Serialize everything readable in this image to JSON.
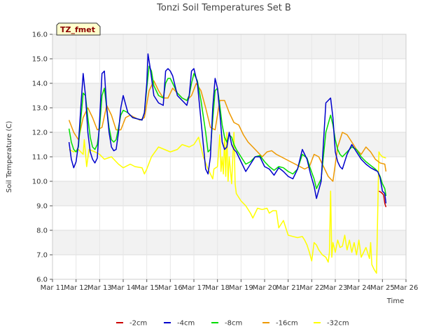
{
  "chart_data": {
    "type": "line",
    "title": "Tonzi Soil Temperatures Set B",
    "xlabel": "Time",
    "ylabel": "Soil Temperature (C)",
    "badge": "TZ_fmet",
    "xlim": [
      11,
      26
    ],
    "ylim": [
      6.0,
      16.0
    ],
    "x_ticks": [
      11,
      12,
      13,
      14,
      15,
      16,
      17,
      18,
      19,
      20,
      21,
      22,
      23,
      24,
      25,
      26
    ],
    "x_tick_labels": [
      "Mar 11",
      "Mar 12",
      "Mar 13",
      "Mar 14",
      "Mar 15",
      "Mar 16",
      "Mar 17",
      "Mar 18",
      "Mar 19",
      "Mar 20",
      "Mar 21",
      "Mar 22",
      "Mar 23",
      "Mar 24",
      "Mar 25",
      "Mar 26"
    ],
    "y_ticks": [
      6.0,
      7.0,
      8.0,
      9.0,
      10.0,
      11.0,
      12.0,
      13.0,
      14.0,
      15.0,
      16.0
    ],
    "y_tick_labels": [
      "6.0",
      "7.0",
      "8.0",
      "9.0",
      "10.0",
      "11.0",
      "12.0",
      "13.0",
      "14.0",
      "15.0",
      "16.0"
    ],
    "grid": true,
    "legend_position": "bottom-center",
    "series": [
      {
        "name": "-2cm",
        "color": "#cc0000",
        "x": [
          24.85,
          24.95,
          25.05,
          25.1,
          25.15
        ],
        "y": [
          9.6,
          9.55,
          9.45,
          9.1,
          8.95
        ]
      },
      {
        "name": "-4cm",
        "color": "#0000cc",
        "x": [
          11.7,
          11.8,
          11.9,
          12.0,
          12.1,
          12.2,
          12.3,
          12.4,
          12.5,
          12.6,
          12.7,
          12.8,
          12.9,
          13.0,
          13.1,
          13.2,
          13.3,
          13.4,
          13.5,
          13.6,
          13.7,
          13.8,
          13.9,
          14.0,
          14.2,
          14.4,
          14.6,
          14.8,
          14.9,
          15.0,
          15.05,
          15.15,
          15.3,
          15.5,
          15.7,
          15.8,
          15.9,
          16.0,
          16.1,
          16.3,
          16.5,
          16.7,
          16.8,
          16.9,
          17.0,
          17.15,
          17.3,
          17.5,
          17.6,
          17.7,
          17.8,
          17.9,
          18.0,
          18.1,
          18.2,
          18.3,
          18.4,
          18.5,
          18.6,
          18.7,
          18.8,
          19.0,
          19.2,
          19.4,
          19.6,
          19.8,
          20.0,
          20.2,
          20.4,
          20.6,
          20.8,
          21.0,
          21.2,
          21.4,
          21.6,
          21.8,
          21.95,
          22.1,
          22.2,
          22.4,
          22.6,
          22.8,
          22.9,
          23.0,
          23.1,
          23.2,
          23.3,
          23.5,
          23.7,
          23.9,
          24.1,
          24.3,
          24.5,
          24.7,
          24.8,
          24.9,
          25.0,
          25.1,
          25.15
        ],
        "y": [
          11.6,
          10.9,
          10.55,
          10.8,
          11.5,
          13.0,
          14.4,
          13.5,
          12.0,
          11.2,
          10.9,
          10.75,
          10.95,
          12.5,
          14.4,
          14.5,
          13.0,
          12.0,
          11.4,
          11.25,
          11.3,
          12.0,
          13.0,
          13.5,
          12.8,
          12.6,
          12.55,
          12.5,
          12.8,
          14.0,
          15.2,
          14.6,
          13.5,
          13.2,
          13.1,
          14.5,
          14.6,
          14.5,
          14.3,
          13.5,
          13.3,
          13.1,
          13.5,
          14.5,
          14.6,
          14.0,
          12.5,
          10.5,
          10.3,
          11.0,
          13.0,
          14.2,
          13.8,
          12.8,
          11.6,
          11.3,
          11.4,
          12.0,
          11.5,
          11.3,
          11.2,
          10.8,
          10.4,
          10.7,
          11.0,
          11.0,
          10.6,
          10.5,
          10.25,
          10.55,
          10.4,
          10.2,
          10.1,
          10.5,
          11.3,
          10.9,
          10.3,
          9.8,
          9.3,
          10.0,
          13.2,
          13.4,
          12.6,
          11.2,
          10.8,
          10.6,
          10.5,
          11.1,
          11.5,
          11.2,
          10.9,
          10.7,
          10.55,
          10.45,
          10.4,
          10.15,
          9.6,
          9.5,
          9.1
        ]
      },
      {
        "name": "-8cm",
        "color": "#00dd00",
        "x": [
          11.7,
          11.8,
          11.9,
          12.0,
          12.1,
          12.2,
          12.3,
          12.4,
          12.5,
          12.6,
          12.7,
          12.8,
          12.9,
          13.0,
          13.1,
          13.2,
          13.3,
          13.4,
          13.5,
          13.6,
          13.7,
          13.8,
          13.9,
          14.0,
          14.2,
          14.4,
          14.6,
          14.8,
          14.9,
          15.0,
          15.1,
          15.2,
          15.3,
          15.5,
          15.7,
          15.8,
          15.9,
          16.0,
          16.1,
          16.3,
          16.5,
          16.7,
          16.8,
          16.9,
          17.0,
          17.15,
          17.3,
          17.5,
          17.6,
          17.7,
          17.8,
          17.9,
          18.0,
          18.1,
          18.2,
          18.3,
          18.4,
          18.5,
          18.6,
          18.7,
          18.8,
          19.0,
          19.2,
          19.4,
          19.6,
          19.8,
          20.0,
          20.2,
          20.4,
          20.6,
          20.8,
          21.0,
          21.2,
          21.4,
          21.6,
          21.8,
          21.95,
          22.1,
          22.2,
          22.4,
          22.6,
          22.8,
          22.9,
          23.0,
          23.1,
          23.2,
          23.3,
          23.5,
          23.7,
          23.9,
          24.1,
          24.3,
          24.5,
          24.7,
          24.8,
          24.9,
          25.0,
          25.1,
          25.15
        ],
        "y": [
          12.15,
          11.6,
          11.3,
          11.2,
          11.4,
          12.5,
          13.6,
          13.5,
          12.6,
          11.8,
          11.4,
          11.3,
          11.5,
          12.2,
          13.5,
          13.8,
          13.0,
          12.2,
          11.7,
          11.6,
          11.7,
          12.2,
          12.7,
          12.9,
          12.8,
          12.6,
          12.55,
          12.5,
          12.8,
          13.8,
          14.7,
          14.5,
          13.9,
          13.5,
          13.4,
          14.0,
          14.2,
          14.2,
          14.0,
          13.6,
          13.4,
          13.3,
          13.5,
          14.0,
          14.4,
          14.1,
          13.3,
          12.0,
          11.2,
          11.3,
          12.5,
          13.7,
          13.8,
          13.1,
          12.3,
          11.8,
          11.6,
          11.9,
          11.8,
          11.5,
          11.3,
          11.0,
          10.7,
          10.8,
          11.0,
          11.05,
          10.8,
          10.6,
          10.45,
          10.6,
          10.55,
          10.4,
          10.3,
          10.5,
          11.1,
          10.95,
          10.5,
          10.1,
          9.7,
          10.1,
          12.0,
          12.7,
          12.3,
          11.7,
          11.3,
          11.1,
          11.0,
          11.2,
          11.4,
          11.3,
          11.0,
          10.8,
          10.65,
          10.5,
          10.4,
          10.2,
          9.9,
          9.7,
          9.4
        ]
      },
      {
        "name": "-16cm",
        "color": "#ee9900",
        "x": [
          11.7,
          11.9,
          12.1,
          12.3,
          12.5,
          12.7,
          12.9,
          13.1,
          13.3,
          13.5,
          13.7,
          13.9,
          14.1,
          14.3,
          14.5,
          14.7,
          14.9,
          15.1,
          15.3,
          15.5,
          15.7,
          15.9,
          16.1,
          16.3,
          16.5,
          16.7,
          16.9,
          17.1,
          17.3,
          17.5,
          17.7,
          17.9,
          18.1,
          18.3,
          18.5,
          18.7,
          18.9,
          19.1,
          19.3,
          19.5,
          19.7,
          19.9,
          20.1,
          20.3,
          20.5,
          20.7,
          20.9,
          21.1,
          21.3,
          21.5,
          21.7,
          21.9,
          22.1,
          22.3,
          22.5,
          22.7,
          22.9,
          23.1,
          23.3,
          23.5,
          23.7,
          23.9,
          24.1,
          24.3,
          24.5,
          24.7,
          24.9,
          25.1,
          25.15
        ],
        "y": [
          12.5,
          12.0,
          11.7,
          12.6,
          13.0,
          12.6,
          12.1,
          12.2,
          13.1,
          12.7,
          12.1,
          12.1,
          12.6,
          12.7,
          12.6,
          12.5,
          12.6,
          13.7,
          14.1,
          13.7,
          13.4,
          13.4,
          13.8,
          13.6,
          13.4,
          13.3,
          13.5,
          14.0,
          13.7,
          13.0,
          12.2,
          12.1,
          13.3,
          13.3,
          12.8,
          12.4,
          12.3,
          11.9,
          11.6,
          11.4,
          11.2,
          11.0,
          11.2,
          11.25,
          11.1,
          11.0,
          10.9,
          10.8,
          10.7,
          10.6,
          10.5,
          10.6,
          11.1,
          11.0,
          10.6,
          10.2,
          10.0,
          11.4,
          12.0,
          11.9,
          11.6,
          11.3,
          11.1,
          11.4,
          11.2,
          10.9,
          10.75,
          10.7,
          10.4
        ]
      },
      {
        "name": "-32cm",
        "color": "#ffff00",
        "x": [
          11.7,
          11.9,
          12.1,
          12.3,
          12.35,
          12.45,
          12.55,
          12.8,
          13.0,
          13.2,
          13.5,
          13.8,
          14.0,
          14.3,
          14.5,
          14.8,
          14.9,
          15.0,
          15.2,
          15.5,
          16.0,
          16.3,
          16.5,
          16.8,
          17.0,
          17.2,
          17.4,
          17.6,
          17.8,
          17.85,
          18.0,
          18.1,
          18.15,
          18.2,
          18.25,
          18.3,
          18.35,
          18.4,
          18.45,
          18.5,
          18.6,
          18.7,
          18.75,
          18.8,
          19.0,
          19.2,
          19.4,
          19.5,
          19.7,
          19.9,
          20.1,
          20.2,
          20.35,
          20.5,
          20.6,
          20.8,
          21.0,
          21.2,
          21.4,
          21.6,
          21.7,
          21.8,
          21.9,
          22.0,
          22.1,
          22.2,
          22.3,
          22.45,
          22.6,
          22.7,
          22.75,
          22.8,
          22.85,
          22.9,
          23.0,
          23.1,
          23.2,
          23.3,
          23.4,
          23.5,
          23.6,
          23.7,
          23.8,
          23.9,
          24.0,
          24.1,
          24.3,
          24.45,
          24.5,
          24.55,
          24.65,
          24.75,
          24.85,
          24.9,
          25.0,
          25.15
        ],
        "y": [
          11.3,
          11.2,
          11.3,
          11.1,
          11.7,
          10.6,
          11.3,
          11.2,
          11.1,
          10.9,
          11.0,
          10.7,
          10.55,
          10.7,
          10.6,
          10.55,
          10.3,
          10.5,
          11.0,
          11.4,
          11.2,
          11.3,
          11.5,
          11.4,
          11.5,
          11.8,
          11.0,
          10.5,
          10.1,
          10.5,
          10.6,
          11.9,
          10.4,
          11.0,
          10.3,
          11.8,
          10.2,
          12.0,
          10.0,
          11.0,
          9.9,
          12.0,
          9.9,
          9.5,
          9.2,
          9.0,
          8.7,
          8.5,
          8.9,
          8.85,
          8.9,
          8.7,
          8.8,
          8.8,
          8.1,
          8.4,
          7.8,
          7.75,
          7.7,
          7.75,
          7.6,
          7.4,
          7.1,
          6.75,
          7.5,
          7.4,
          7.2,
          7.0,
          6.9,
          6.7,
          7.1,
          9.6,
          6.9,
          7.5,
          7.1,
          7.6,
          7.3,
          7.35,
          7.8,
          7.2,
          7.6,
          7.1,
          7.5,
          7.0,
          7.6,
          6.9,
          7.3,
          6.85,
          7.5,
          6.6,
          6.4,
          6.25,
          11.2,
          11.1,
          11.0,
          10.95
        ]
      }
    ]
  }
}
